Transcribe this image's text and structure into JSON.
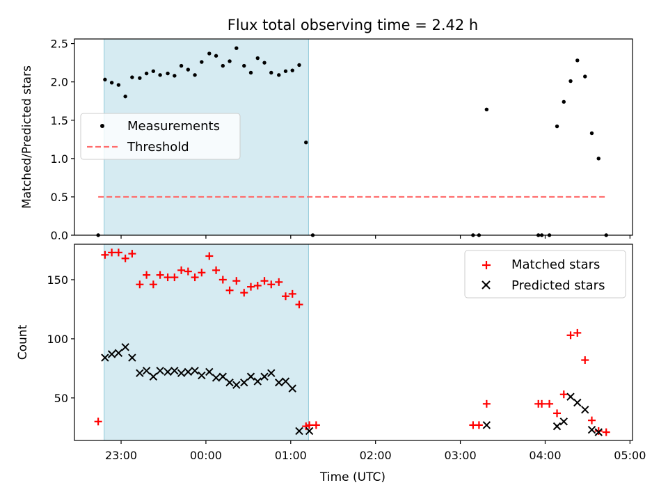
{
  "chart_data": [
    {
      "type": "scatter",
      "title": "Flux total observing time = 2.42 h",
      "xlabel": "",
      "ylabel": "Matched/Predicted stars",
      "xlim": [
        -1.55,
        5.03
      ],
      "ylim": [
        0.0,
        2.56
      ],
      "yticks": [
        0.0,
        0.5,
        1.0,
        1.5,
        2.0,
        2.5
      ],
      "ytick_labels": [
        "0.0",
        "0.5",
        "1.0",
        "1.5",
        "2.0",
        "2.5"
      ],
      "observing_window": [
        -1.2,
        1.21
      ],
      "threshold": {
        "value": 0.5,
        "x_range": [
          -1.27,
          4.72
        ]
      },
      "legend": [
        "Measurements",
        "Threshold"
      ],
      "legend_position": "center-left",
      "series": [
        {
          "name": "Measurements",
          "x": [
            -1.27,
            -1.19,
            -1.11,
            -1.03,
            -0.95,
            -0.87,
            -0.78,
            -0.7,
            -0.62,
            -0.54,
            -0.45,
            -0.37,
            -0.29,
            -0.21,
            -0.13,
            -0.05,
            0.04,
            0.12,
            0.2,
            0.28,
            0.36,
            0.45,
            0.53,
            0.61,
            0.69,
            0.77,
            0.86,
            0.94,
            1.02,
            1.1,
            1.18,
            1.26,
            3.15,
            3.22,
            3.31,
            3.92,
            3.96,
            4.05,
            4.14,
            4.22,
            4.3,
            4.38,
            4.47,
            4.55,
            4.63,
            4.72
          ],
          "y": [
            0.0,
            2.03,
            1.99,
            1.96,
            1.81,
            2.06,
            2.05,
            2.11,
            2.14,
            2.09,
            2.11,
            2.08,
            2.21,
            2.16,
            2.09,
            2.26,
            2.37,
            2.34,
            2.21,
            2.27,
            2.44,
            2.21,
            2.12,
            2.31,
            2.25,
            2.12,
            2.09,
            2.14,
            2.15,
            2.22,
            1.21,
            0.0,
            0.0,
            0.0,
            1.64,
            0.0,
            0.0,
            0.0,
            1.42,
            1.74,
            2.01,
            2.28,
            2.07,
            1.33,
            1.0,
            0.0
          ]
        }
      ]
    },
    {
      "type": "scatter",
      "title": "",
      "xlabel": "Time (UTC)",
      "ylabel": "Count",
      "xlim": [
        -1.55,
        5.03
      ],
      "ylim": [
        14,
        180
      ],
      "yticks": [
        50,
        100,
        150
      ],
      "ytick_labels": [
        "50",
        "100",
        "150"
      ],
      "xticks": [
        -1,
        0,
        1,
        2,
        3,
        4,
        5
      ],
      "xtick_labels": [
        "23:00",
        "00:00",
        "01:00",
        "02:00",
        "03:00",
        "04:00",
        "05:00"
      ],
      "observing_window": [
        -1.2,
        1.21
      ],
      "legend": [
        "Matched stars",
        "Predicted stars"
      ],
      "legend_position": "upper-right",
      "series": [
        {
          "name": "Matched stars",
          "marker": "+",
          "color": "#ff0000",
          "x": [
            -1.27,
            -1.19,
            -1.11,
            -1.03,
            -0.95,
            -0.87,
            -0.78,
            -0.7,
            -0.62,
            -0.54,
            -0.45,
            -0.37,
            -0.29,
            -0.21,
            -0.13,
            -0.05,
            0.04,
            0.12,
            0.2,
            0.28,
            0.36,
            0.45,
            0.53,
            0.61,
            0.69,
            0.77,
            0.86,
            0.94,
            1.02,
            1.1,
            1.18,
            1.22,
            1.3,
            3.15,
            3.22,
            3.31,
            3.92,
            3.96,
            4.05,
            4.14,
            4.22,
            4.3,
            4.38,
            4.47,
            4.55,
            4.63,
            4.72
          ],
          "y": [
            30,
            171,
            173,
            173,
            168,
            172,
            146,
            154,
            146,
            154,
            152,
            152,
            158,
            157,
            152,
            156,
            170,
            158,
            150,
            141,
            149,
            139,
            144,
            145,
            149,
            146,
            148,
            136,
            138,
            129,
            26,
            27,
            27,
            27,
            27,
            45,
            45,
            45,
            45,
            37,
            53,
            103,
            105,
            82,
            31,
            22,
            21
          ]
        },
        {
          "name": "Predicted stars",
          "marker": "x",
          "color": "#000000",
          "x": [
            -1.19,
            -1.11,
            -1.03,
            -0.95,
            -0.87,
            -0.78,
            -0.7,
            -0.62,
            -0.54,
            -0.45,
            -0.37,
            -0.29,
            -0.21,
            -0.13,
            -0.05,
            0.04,
            0.12,
            0.2,
            0.28,
            0.36,
            0.45,
            0.53,
            0.61,
            0.69,
            0.77,
            0.86,
            0.94,
            1.02,
            1.1,
            1.22,
            3.31,
            4.14,
            4.22,
            4.3,
            4.38,
            4.47,
            4.55,
            4.63
          ],
          "y": [
            84,
            87,
            88,
            93,
            84,
            71,
            73,
            68,
            73,
            72,
            73,
            71,
            72,
            73,
            69,
            72,
            67,
            68,
            63,
            61,
            63,
            68,
            64,
            68,
            71,
            63,
            64,
            58,
            22,
            22,
            27,
            26,
            30,
            51,
            46,
            40,
            23,
            21
          ]
        }
      ]
    }
  ]
}
